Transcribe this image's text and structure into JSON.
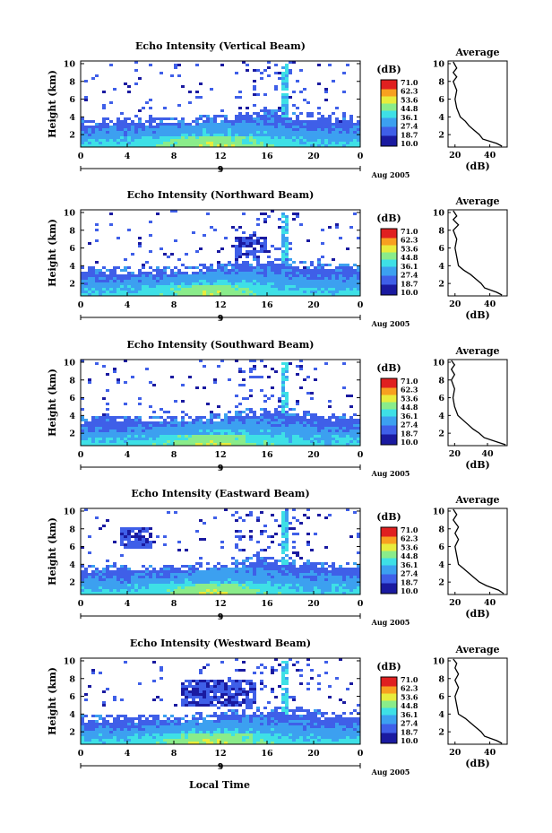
{
  "chart_data": {
    "type": "heatmap",
    "xlabel": "Local Time",
    "x_ticks": [
      "0",
      "4",
      "8",
      "12",
      "16",
      "20",
      "0"
    ],
    "xlim": [
      0,
      24
    ],
    "date_ticks": [
      "9"
    ],
    "date_label": "Aug 2005",
    "y_ticks": [
      "2",
      "4",
      "6",
      "8",
      "10"
    ],
    "ylim": [
      0.6,
      10.3
    ],
    "ylabel": "Height (km)",
    "colorbar": {
      "unit": "(dB)",
      "ticks": [
        "71.0",
        "62.3",
        "53.6",
        "44.8",
        "36.1",
        "27.4",
        "18.7",
        "10.0"
      ],
      "range": [
        10,
        71
      ],
      "colors": [
        "#1a1aa0",
        "#3f5fe8",
        "#3ca0f0",
        "#3ee0e6",
        "#8aec8a",
        "#e8ec3c",
        "#f8a020",
        "#e02020"
      ]
    },
    "panels": [
      {
        "title": "Echo Intensity (Vertical Beam)",
        "profile": {
          "title": "Average",
          "xlabel": "(dB)",
          "x_ticks": [
            "20",
            "40"
          ],
          "xlim": [
            16,
            50
          ],
          "y_ticks": [
            "2",
            "4",
            "6",
            "8",
            "10"
          ],
          "ylim": [
            0.6,
            10.3
          ],
          "points": [
            [
              47,
              0.7
            ],
            [
              44,
              1.0
            ],
            [
              36,
              1.5
            ],
            [
              34,
              2.0
            ],
            [
              31,
              2.5
            ],
            [
              28,
              3.0
            ],
            [
              26,
              3.5
            ],
            [
              23,
              4.0
            ],
            [
              21,
              5.0
            ],
            [
              20,
              6.0
            ],
            [
              21,
              7.0
            ],
            [
              19,
              8.0
            ],
            [
              21,
              8.5
            ],
            [
              19,
              9.0
            ],
            [
              21,
              9.5
            ],
            [
              19,
              10.2
            ]
          ]
        }
      },
      {
        "title": "Echo Intensity (Northward Beam)",
        "profile": {
          "title": "Average",
          "xlabel": "(dB)",
          "x_ticks": [
            "20",
            "40"
          ],
          "xlim": [
            16,
            50
          ],
          "y_ticks": [
            "2",
            "4",
            "6",
            "8",
            "10"
          ],
          "ylim": [
            0.6,
            10.3
          ],
          "points": [
            [
              47,
              0.7
            ],
            [
              44,
              1.0
            ],
            [
              37,
              1.5
            ],
            [
              35,
              2.0
            ],
            [
              32,
              2.5
            ],
            [
              29,
              3.0
            ],
            [
              25,
              3.5
            ],
            [
              22,
              4.0
            ],
            [
              21,
              5.0
            ],
            [
              20,
              6.0
            ],
            [
              21,
              7.0
            ],
            [
              19,
              8.0
            ],
            [
              22,
              8.6
            ],
            [
              19,
              9.2
            ],
            [
              21,
              9.6
            ],
            [
              19,
              10.2
            ]
          ]
        }
      },
      {
        "title": "Echo Intensity (Southward Beam)",
        "profile": {
          "title": "Average",
          "xlabel": "(dB)",
          "x_ticks": [
            "20",
            "40"
          ],
          "xlim": [
            16,
            52
          ],
          "y_ticks": [
            "2",
            "4",
            "6",
            "8",
            "10"
          ],
          "ylim": [
            0.6,
            10.3
          ],
          "points": [
            [
              51,
              0.7
            ],
            [
              46,
              1.0
            ],
            [
              38,
              1.5
            ],
            [
              35,
              2.0
            ],
            [
              31,
              2.5
            ],
            [
              28,
              3.0
            ],
            [
              25,
              3.5
            ],
            [
              22,
              4.0
            ],
            [
              20,
              5.0
            ],
            [
              19,
              6.0
            ],
            [
              20,
              7.0
            ],
            [
              18,
              8.0
            ],
            [
              20,
              8.6
            ],
            [
              18,
              9.2
            ],
            [
              20,
              9.7
            ],
            [
              18,
              10.2
            ]
          ]
        }
      },
      {
        "title": "Echo Intensity (Eastward Beam)",
        "profile": {
          "title": "Average",
          "xlabel": "(dB)",
          "x_ticks": [
            "20",
            "40"
          ],
          "xlim": [
            16,
            50
          ],
          "y_ticks": [
            "2",
            "4",
            "6",
            "8",
            "10"
          ],
          "ylim": [
            0.6,
            10.3
          ],
          "points": [
            [
              48,
              0.7
            ],
            [
              45,
              1.1
            ],
            [
              38,
              1.6
            ],
            [
              34,
              2.0
            ],
            [
              31,
              2.5
            ],
            [
              28,
              3.0
            ],
            [
              25,
              3.5
            ],
            [
              22,
              4.0
            ],
            [
              21,
              5.0
            ],
            [
              20,
              6.0
            ],
            [
              22,
              6.8
            ],
            [
              20,
              7.5
            ],
            [
              22,
              8.2
            ],
            [
              19,
              9.0
            ],
            [
              21,
              9.6
            ],
            [
              19,
              10.2
            ]
          ]
        }
      },
      {
        "title": "Echo Intensity (Westward Beam)",
        "profile": {
          "title": "Average",
          "xlabel": "(dB)",
          "x_ticks": [
            "20",
            "40"
          ],
          "xlim": [
            16,
            50
          ],
          "y_ticks": [
            "2",
            "4",
            "6",
            "8",
            "10"
          ],
          "ylim": [
            0.6,
            10.3
          ],
          "points": [
            [
              47,
              0.7
            ],
            [
              44,
              1.0
            ],
            [
              37,
              1.5
            ],
            [
              35,
              2.0
            ],
            [
              32,
              2.5
            ],
            [
              29,
              3.0
            ],
            [
              26,
              3.5
            ],
            [
              22,
              4.0
            ],
            [
              21,
              5.0
            ],
            [
              20,
              6.0
            ],
            [
              22,
              7.0
            ],
            [
              20,
              7.8
            ],
            [
              22,
              8.5
            ],
            [
              20,
              9.2
            ],
            [
              21,
              9.7
            ],
            [
              19,
              10.2
            ]
          ]
        }
      }
    ]
  }
}
